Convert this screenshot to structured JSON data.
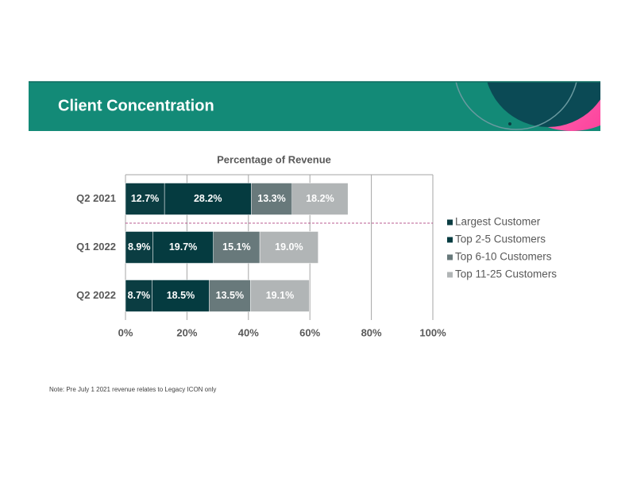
{
  "header": {
    "title": "Client Concentration"
  },
  "chart_data": {
    "type": "barh",
    "stacked": true,
    "title": "Percentage of Revenue",
    "categories": [
      "Q2 2021",
      "Q1 2022",
      "Q2 2022"
    ],
    "series": [
      {
        "name": "Largest Customer",
        "color": "#0b3d42",
        "values": [
          12.7,
          8.9,
          8.7
        ],
        "value_labels": [
          "12.7%",
          "8.9%",
          "8.7%"
        ]
      },
      {
        "name": "Top 2-5 Customers",
        "color": "#053b40",
        "values": [
          28.2,
          19.7,
          18.5
        ],
        "value_labels": [
          "28.2%",
          "19.7%",
          "18.5%"
        ]
      },
      {
        "name": "Top 6-10 Customers",
        "color": "#68797b",
        "values": [
          13.3,
          15.1,
          13.5
        ],
        "value_labels": [
          "13.3%",
          "15.1%",
          "13.5%"
        ]
      },
      {
        "name": "Top 11-25 Customers",
        "color": "#b1b5b6",
        "values": [
          18.2,
          19.0,
          19.1
        ],
        "value_labels": [
          "18.2%",
          "19.0%",
          "19.1%"
        ]
      }
    ],
    "xlim": [
      0,
      100
    ],
    "xticks": [
      {
        "value": 0,
        "label": "0%"
      },
      {
        "value": 20,
        "label": "20%"
      },
      {
        "value": 40,
        "label": "40%"
      },
      {
        "value": 60,
        "label": "60%"
      },
      {
        "value": 80,
        "label": "80%"
      },
      {
        "value": 100,
        "label": "100%"
      }
    ],
    "grid": true,
    "legend": "right"
  },
  "note": "Note:  Pre July 1 2021 revenue relates to Legacy ICON only"
}
